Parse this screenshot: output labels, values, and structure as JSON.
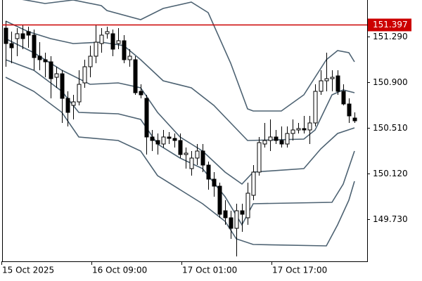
{
  "chart_data": {
    "type": "candlestick",
    "categories": [
      "15 Oct 2025",
      null,
      null,
      null,
      null,
      null,
      null,
      null,
      null,
      null,
      null,
      null,
      null,
      null,
      null,
      null,
      "16 Oct 09:00",
      null,
      null,
      null,
      null,
      null,
      null,
      null,
      null,
      null,
      null,
      null,
      null,
      null,
      null,
      null,
      "17 Oct 01:00",
      null,
      null,
      null,
      null,
      null,
      null,
      null,
      null,
      null,
      null,
      null,
      null,
      null,
      null,
      null,
      "17 Oct 17:00",
      null,
      null,
      null,
      null,
      null,
      null,
      null,
      null,
      null,
      null,
      null,
      null,
      null,
      null
    ],
    "open": [
      151.364,
      151.232,
      151.274,
      151.316,
      151.334,
      151.304,
      151.124,
      151.094,
      151.076,
      150.944,
      150.974,
      150.764,
      150.704,
      150.734,
      150.896,
      151.034,
      151.124,
      151.232,
      151.316,
      151.316,
      151.232,
      151.256,
      151.094,
      151.094,
      150.824,
      150.764,
      150.434,
      150.404,
      150.374,
      150.434,
      150.422,
      150.404,
      150.284,
      150.164,
      150.254,
      150.314,
      150.194,
      150.074,
      150.014,
      149.804,
      149.744,
      149.654,
      149.804,
      149.744,
      149.936,
      150.134,
      150.374,
      150.404,
      150.434,
      150.404,
      150.374,
      150.464,
      150.494,
      150.506,
      150.494,
      150.554,
      150.824,
      150.914,
      150.932,
      150.956,
      150.824,
      150.716,
      150.596
    ],
    "high": [
      151.424,
      151.334,
      151.364,
      151.394,
      151.376,
      151.352,
      151.244,
      151.154,
      151.124,
      151.034,
      151.004,
      150.824,
      150.794,
      151.004,
      151.094,
      151.214,
      151.394,
      151.364,
      151.376,
      151.352,
      151.364,
      151.304,
      151.184,
      151.124,
      150.884,
      150.794,
      150.494,
      150.464,
      150.494,
      150.476,
      150.464,
      150.464,
      150.344,
      150.314,
      150.374,
      150.374,
      150.224,
      150.134,
      150.044,
      149.894,
      149.804,
      149.864,
      149.864,
      150.044,
      150.194,
      150.434,
      150.554,
      150.584,
      150.494,
      150.524,
      150.524,
      150.584,
      150.554,
      150.614,
      150.614,
      150.884,
      151.004,
      151.154,
      151.004,
      151.004,
      150.884,
      150.764,
      150.644
    ],
    "low": [
      151.034,
      151.064,
      151.124,
      151.184,
      151.196,
      151.004,
      151.004,
      150.944,
      150.764,
      150.854,
      150.554,
      150.524,
      150.584,
      150.704,
      150.854,
      150.944,
      151.064,
      151.154,
      151.274,
      151.124,
      151.184,
      151.064,
      151.034,
      150.794,
      150.764,
      150.284,
      150.314,
      150.284,
      150.344,
      150.374,
      150.344,
      150.254,
      150.164,
      150.104,
      150.194,
      150.134,
      149.984,
      149.924,
      149.744,
      149.684,
      149.564,
      149.414,
      149.624,
      149.684,
      149.894,
      150.104,
      150.344,
      150.314,
      150.374,
      150.344,
      150.344,
      150.404,
      150.464,
      150.464,
      150.374,
      150.524,
      150.794,
      150.824,
      150.824,
      150.794,
      150.704,
      150.554,
      150.554
    ],
    "close": [
      151.232,
      151.196,
      151.316,
      151.274,
      151.304,
      151.112,
      151.094,
      151.076,
      150.932,
      150.974,
      150.764,
      150.644,
      150.734,
      150.884,
      151.034,
      151.124,
      151.244,
      151.304,
      151.334,
      151.184,
      151.256,
      151.094,
      151.124,
      150.812,
      150.794,
      150.434,
      150.404,
      150.374,
      150.434,
      150.422,
      150.404,
      150.284,
      150.296,
      150.254,
      150.314,
      150.194,
      150.074,
      150.014,
      149.774,
      149.744,
      149.654,
      149.804,
      149.774,
      149.954,
      150.134,
      150.386,
      150.404,
      150.434,
      150.404,
      150.374,
      150.464,
      150.494,
      150.506,
      150.494,
      150.554,
      150.824,
      150.914,
      150.932,
      150.944,
      150.824,
      150.716,
      150.614,
      150.572
    ],
    "up_color": "#ffffff",
    "down_color": "#000000",
    "series": [
      {
        "color": "#4d6272",
        "x": [
          0,
          7,
          12,
          17,
          18,
          24,
          28,
          33,
          36,
          40,
          43,
          44,
          49,
          53,
          57,
          59,
          61,
          62
        ],
        "values": [
          151.634,
          151.574,
          151.604,
          151.556,
          151.514,
          151.436,
          151.532,
          151.586,
          151.496,
          151.064,
          150.674,
          150.656,
          150.656,
          150.794,
          151.094,
          151.172,
          151.154,
          151.076
        ]
      },
      {
        "color": "#4d6272",
        "x": [
          0,
          4,
          8,
          12,
          17,
          21,
          24,
          28,
          33,
          37,
          40,
          43,
          53,
          55,
          58,
          60,
          62
        ],
        "values": [
          151.424,
          151.334,
          151.274,
          151.232,
          151.244,
          151.214,
          151.094,
          150.914,
          150.854,
          150.704,
          150.554,
          150.404,
          150.416,
          150.494,
          150.794,
          150.836,
          150.812
        ]
      },
      {
        "color": "#4d6272",
        "x": [
          0,
          5,
          10,
          15,
          20,
          24,
          27,
          31,
          35,
          39,
          42,
          44,
          53,
          56,
          59,
          62
        ],
        "values": [
          151.274,
          151.154,
          151.004,
          150.884,
          150.896,
          150.854,
          150.644,
          150.434,
          150.314,
          150.134,
          150.032,
          150.134,
          150.164,
          150.332,
          150.464,
          150.512
        ]
      },
      {
        "color": "#4d6272",
        "x": [
          0,
          5,
          10,
          13,
          20,
          24,
          27,
          31,
          35,
          39,
          42,
          44,
          58,
          60,
          62
        ],
        "values": [
          151.094,
          151.004,
          150.824,
          150.644,
          150.632,
          150.584,
          150.374,
          150.254,
          150.164,
          149.924,
          149.684,
          149.864,
          149.876,
          150.032,
          150.314
        ]
      },
      {
        "color": "#4d6272",
        "x": [
          0,
          5,
          10,
          13,
          20,
          24,
          27,
          31,
          35,
          39,
          41,
          44,
          57,
          59,
          61,
          62
        ],
        "values": [
          150.944,
          150.824,
          150.644,
          150.434,
          150.404,
          150.314,
          150.104,
          149.984,
          149.864,
          149.714,
          149.564,
          149.516,
          149.504,
          149.684,
          149.894,
          150.056
        ]
      }
    ],
    "ylim": [
      149.372,
      151.604
    ],
    "yticks": [
      {
        "value": 151.29,
        "label": "151.290"
      },
      {
        "value": 150.9,
        "label": "150.900"
      },
      {
        "value": 150.51,
        "label": "150.510"
      },
      {
        "value": 150.12,
        "label": "150.120"
      },
      {
        "value": 149.73,
        "label": "149.730"
      }
    ],
    "price_line": {
      "value": 151.397,
      "color": "#cc0000"
    }
  }
}
